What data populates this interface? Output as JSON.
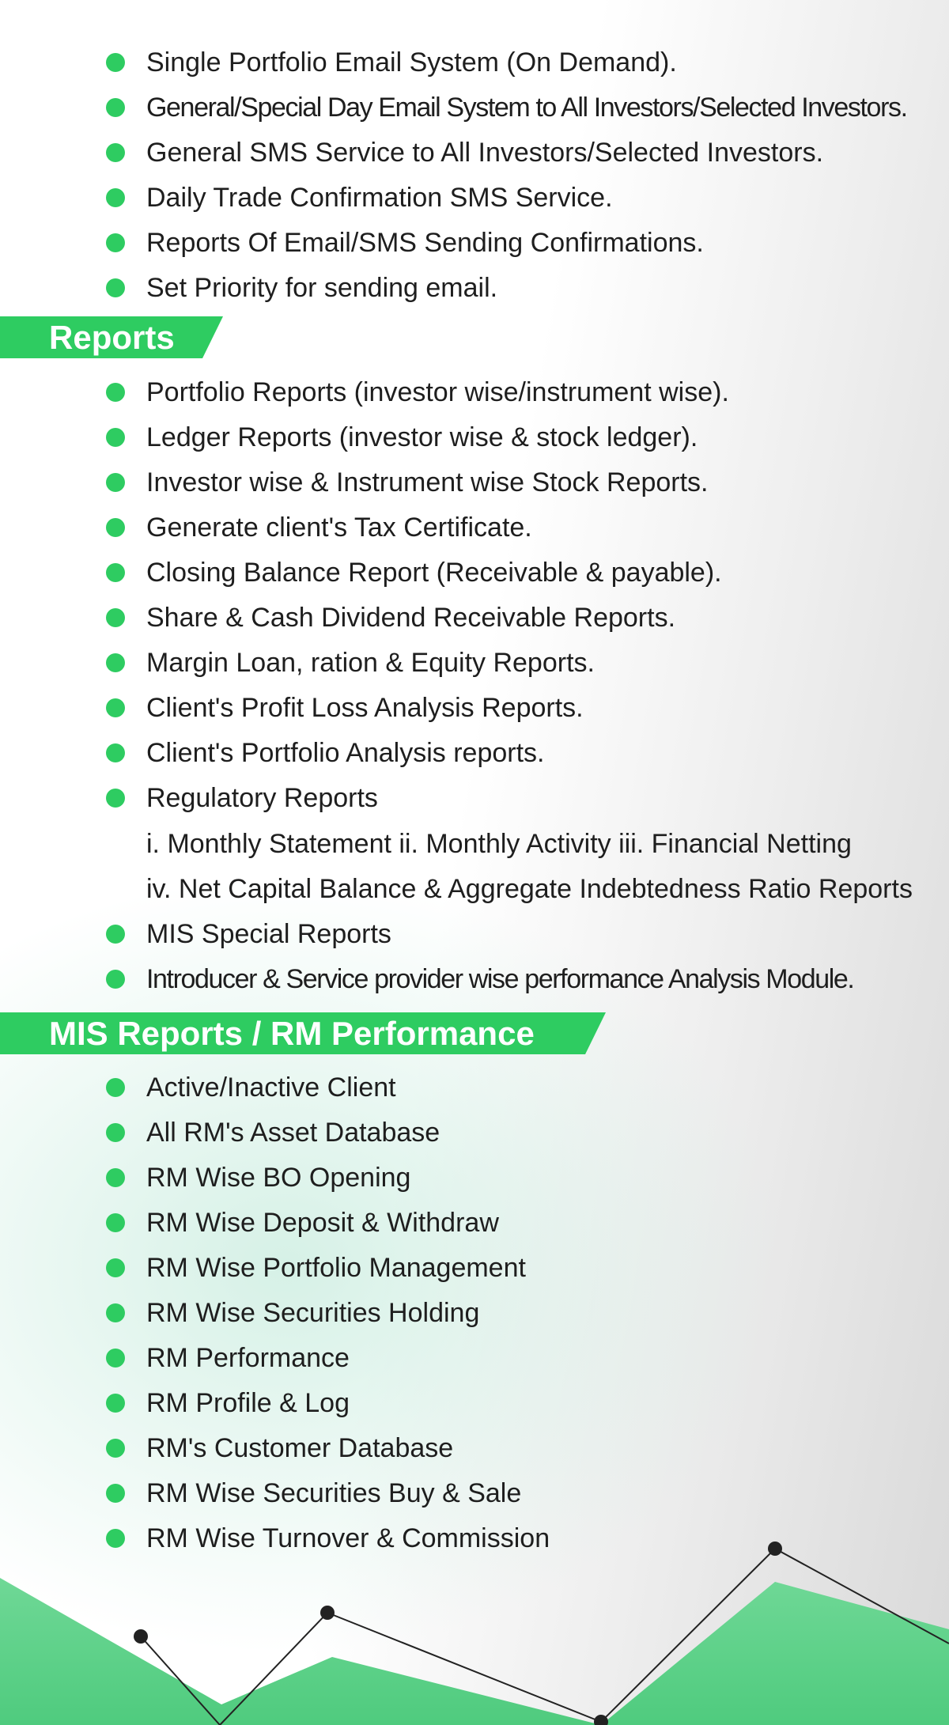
{
  "email_section": {
    "items": [
      "Single Portfolio Email System (On Demand).",
      "General/Special Day Email System to All Investors/Selected Investors.",
      "General SMS Service to All Investors/Selected Investors.",
      "Daily Trade Confirmation SMS Service.",
      "Reports Of Email/SMS Sending Confirmations.",
      "Set Priority for sending email."
    ]
  },
  "reports_section": {
    "title": "Reports",
    "items": [
      "Portfolio Reports (investor wise/instrument wise).",
      "Ledger Reports (investor wise & stock ledger).",
      "Investor wise & Instrument wise Stock Reports.",
      "Generate client's Tax Certificate.",
      "Closing Balance Report (Receivable & payable).",
      "Share & Cash Dividend Receivable Reports.",
      "Margin Loan, ration & Equity Reports.",
      "Client's Profit Loss Analysis Reports.",
      "Client's Portfolio Analysis reports.",
      "Regulatory Reports"
    ],
    "regulatory_sub_1": "i. Monthly Statement  ii. Monthly Activity  iii. Financial Netting",
    "regulatory_sub_2": "iv. Net Capital Balance & Aggregate Indebtedness Ratio Reports",
    "more_items": [
      "MIS Special Reports",
      "Introducer & Service provider wise performance Analysis Module."
    ]
  },
  "mis_section": {
    "title": "MIS Reports / RM Performance",
    "items": [
      "Active/Inactive Client",
      "All RM's Asset Database",
      "RM Wise BO Opening",
      "RM Wise Deposit & Withdraw",
      "RM Wise Portfolio Management",
      "RM Wise Securities Holding",
      "RM Performance",
      "RM Profile & Log",
      "RM's Customer Database",
      "RM Wise Securities Buy & Sale",
      "RM Wise Turnover & Commission"
    ]
  },
  "colors": {
    "accent_green": "#2ecc61",
    "light_green": "#7ddda0",
    "line_dark": "#222222"
  },
  "icons": {
    "bullet": "green-circle-bullet-icon"
  }
}
